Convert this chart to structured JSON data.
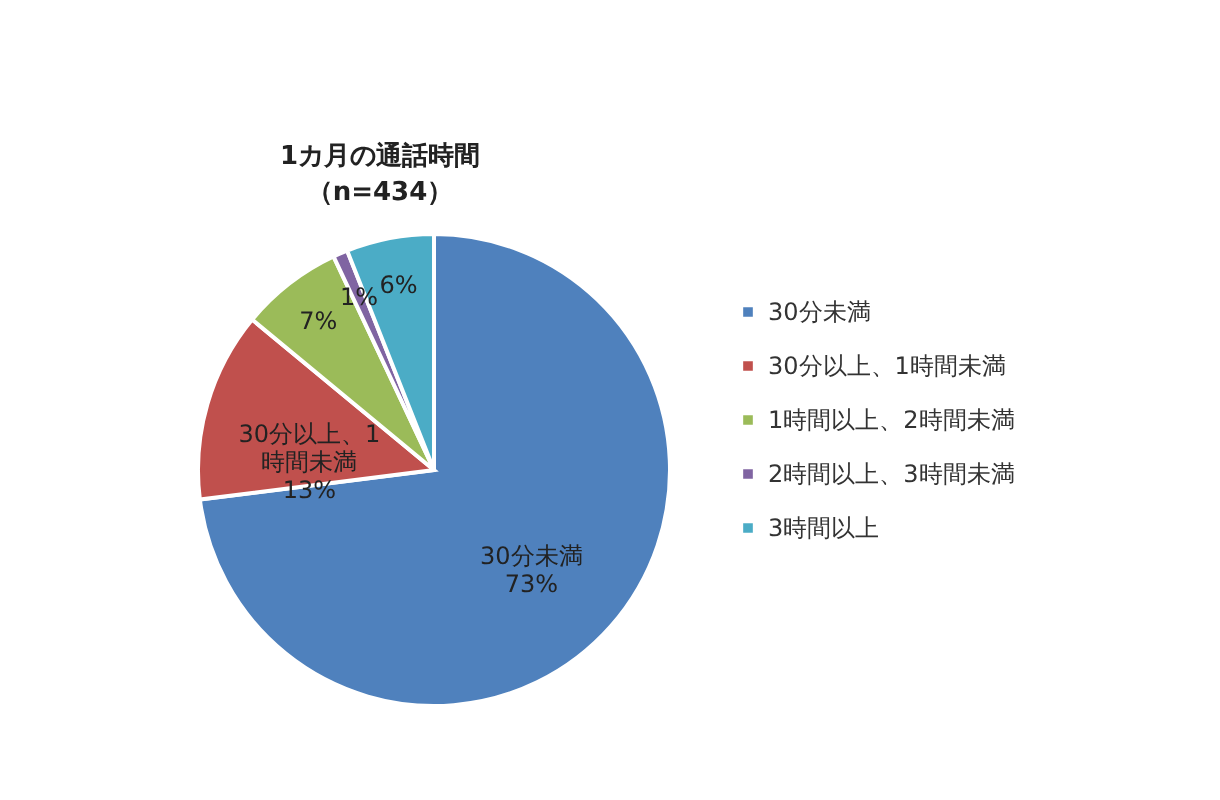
{
  "chart_data": {
    "type": "pie",
    "title": "1カ月の通話時間",
    "subtitle": "（n=434）",
    "categories": [
      "30分未満",
      "30分以上、1時間未満",
      "1時間以上、2時間未満",
      "2時間以上、3時間未満",
      "3時間以上"
    ],
    "values": [
      73,
      13,
      7,
      1,
      6
    ],
    "colors": [
      "#4f81bd",
      "#c0504d",
      "#9bbb59",
      "#8064a2",
      "#4bacc6"
    ],
    "value_labels": [
      "30分未満\n73%",
      "30分以上、1\n時間未満\n13%",
      "7%",
      "1%",
      "6%"
    ],
    "legend": "right"
  }
}
